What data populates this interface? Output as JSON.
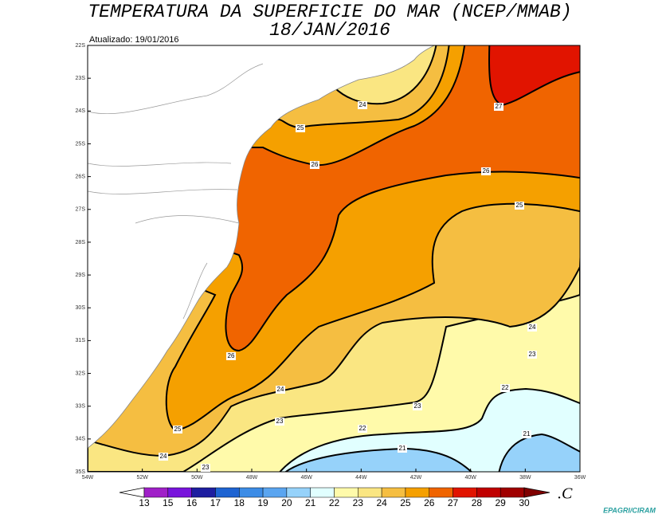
{
  "header": {
    "title": "TEMPERATURA DA SUPERFICIE DO MAR (NCEP/MMAB)",
    "date": "18/JAN/2016",
    "updated": "Atualizado: 19/01/2016"
  },
  "map": {
    "lat_labels": [
      "22S",
      "23S",
      "24S",
      "25S",
      "26S",
      "27S",
      "28S",
      "29S",
      "30S",
      "31S",
      "32S",
      "33S",
      "34S",
      "35S"
    ],
    "lon_labels": [
      "54W",
      "52W",
      "50W",
      "48W",
      "46W",
      "44W",
      "42W",
      "40W",
      "38W",
      "36W"
    ],
    "contour_labels": [
      24,
      25,
      26,
      27,
      26,
      25,
      24,
      23,
      22,
      21,
      22,
      21,
      23,
      24,
      23,
      25,
      26,
      24,
      23
    ]
  },
  "legend": {
    "ticks": [
      13,
      15,
      16,
      17,
      18,
      19,
      20,
      21,
      22,
      23,
      24,
      25,
      26,
      27,
      28,
      29,
      30
    ],
    "colors": [
      "#a020c8",
      "#7814dc",
      "#1e1ea0",
      "#1e64d2",
      "#3c8ce6",
      "#5aa5f0",
      "#96d2fa",
      "#e1ffff",
      "#fffaaa",
      "#fae682",
      "#f5be41",
      "#f5a000",
      "#f06400",
      "#e11400",
      "#c00000",
      "#a00000"
    ],
    "low_color": "#ffffff",
    "high_color": "#800000",
    "unit": ".C"
  },
  "footer": {
    "credit": "EPAGRI/CIRAM"
  }
}
